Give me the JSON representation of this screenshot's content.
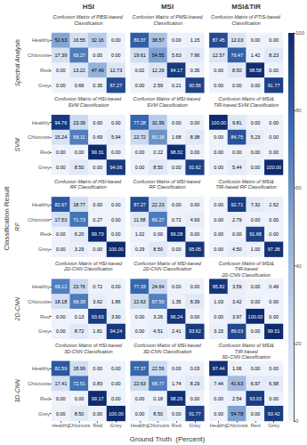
{
  "chart_data": {
    "type": "heatmap",
    "col_titles": [
      "HSI",
      "MSI",
      "MSI&TIR"
    ],
    "row_titles": [
      "Spectral Analysis",
      "SVM",
      "RF",
      "2D-CNN",
      "3D-CNN"
    ],
    "subtitles": [
      [
        "Confusion Matrix of PBSI-based Classification",
        "Confusion Matrix of PMSI-based Classification",
        "Confusion Matrix of PTIS-based Classification"
      ],
      [
        "Confusion Matrix of HSI-based SVM Classification",
        "Confusion Matrix of MSI-based SVM Classification",
        "Confusion Matrix of MSI&TIR-based SVM Classification"
      ],
      [
        "Confusion Matrix of HSI-based RF Classification",
        "Confusion Matrix of MSI-based RF Classification",
        "Confusion Matrix of MSI&TIR-based RF Classification"
      ],
      [
        "Confusion Matrix of HSI-based\n2D-CNN Classification",
        "Confusion Matrix of MSI-based\n2D-CNN Classification",
        "Confusion Matrix of MSI&TIR-based\n2D-CNN Classification"
      ],
      [
        "Confusion Matrix of HSI-based\n3D-CNN Classification",
        "Confusion Matrix of MSI-based\n3D-CNN Classification",
        "Confusion Matrix of MSI&TIR-based\n3D-CNN Classification"
      ]
    ],
    "categories": [
      "Healthy",
      "Chlorosis",
      "Red",
      "Grey"
    ],
    "xlabel": "Ground Truth  (Percent)",
    "ylabel": "Classification Result",
    "values": [
      [
        [
          [
            52.63,
            16.55,
            32.16,
            0.0
          ],
          [
            17.39,
            69.27,
            0.0,
            0.0
          ],
          [
            0.0,
            13.22,
            47.49,
            12.73
          ],
          [
            0.0,
            0.66,
            0.35,
            87.27
          ]
        ],
        [
          [
            80.37,
            38.57,
            0.0,
            1.15
          ],
          [
            19.61,
            54.55,
            5.63,
            7.96
          ],
          [
            0.02,
            12.29,
            94.17,
            0.35
          ],
          [
            0.0,
            2.59,
            0.21,
            90.56
          ]
        ],
        [
          [
            87.45,
            12.03,
            0.0,
            0.0
          ],
          [
            12.57,
            79.47,
            1.42,
            8.23
          ],
          [
            0.0,
            8.5,
            98.58,
            0.0
          ],
          [
            0.0,
            0.0,
            0.0,
            91.77
          ]
        ]
      ],
      [
        [
          [
            94.76,
            23.39,
            0.0,
            0.0
          ],
          [
            15.24,
            68.11,
            0.69,
            5.94
          ],
          [
            0.0,
            0.0,
            99.31,
            0.0
          ],
          [
            0.0,
            8.5,
            0.0,
            94.06
          ]
        ],
        [
          [
            77.28,
            31.99,
            0.0,
            0.0
          ],
          [
            22.72,
            60.18,
            1.68,
            8.38
          ],
          [
            0.0,
            0.22,
            98.32,
            0.0
          ],
          [
            0.0,
            8.5,
            0.0,
            91.62
          ]
        ],
        [
          [
            100.0,
            9.81,
            0.0,
            0.0
          ],
          [
            0.0,
            84.75,
            5.23,
            0.0
          ],
          [
            0.0,
            0.0,
            0.0,
            0.0
          ],
          [
            0.0,
            5.44,
            0.0,
            100.0
          ]
        ]
      ],
      [
        [
          [
            82.67,
            18.77,
            0.0,
            0.0
          ],
          [
            17.53,
            71.73,
            0.27,
            0.0
          ],
          [
            0.0,
            6.2,
            99.73,
            0.0
          ],
          [
            0.0,
            3.29,
            0.0,
            100.0
          ]
        ],
        [
          [
            87.27,
            22.23,
            0.0,
            0.0
          ],
          [
            11.58,
            69.27,
            0.72,
            4.93
          ],
          [
            1.02,
            0.0,
            99.28,
            0.0
          ],
          [
            0.29,
            8.5,
            0.0,
            95.05
          ]
        ],
        [
          [
            0.0,
            92.71,
            7.32,
            2.62
          ],
          [
            0.0,
            2.79,
            0.0,
            0.0
          ],
          [
            0.0,
            0.0,
            91.68,
            0.0
          ],
          [
            0.0,
            4.5,
            1.0,
            97.38
          ]
        ]
      ],
      [
        [
          [
            68.12,
            23.76,
            0.72,
            0.0
          ],
          [
            18.18,
            69.39,
            3.62,
            1.86
          ],
          [
            0.0,
            0.13,
            93.63,
            3.9
          ],
          [
            0.0,
            8.72,
            1.81,
            94.24
          ]
        ],
        [
          [
            77.33,
            24.64,
            0.0,
            0.0
          ],
          [
            22.63,
            67.59,
            1.35,
            8.39
          ],
          [
            0.0,
            3.26,
            96.24,
            0.0
          ],
          [
            0.0,
            4.51,
            2.41,
            93.62
          ]
        ],
        [
          [
            95.82,
            3.59,
            0.0,
            0.49
          ],
          [
            1.03,
            3.42,
            0.0,
            0.0
          ],
          [
            0.0,
            3.97,
            100.0,
            0.0
          ],
          [
            3.15,
            89.03,
            0.0,
            99.51
          ]
        ]
      ],
      [
        [
          [
            82.59,
            18.99,
            0.0,
            0.0
          ],
          [
            17.41,
            72.51,
            0.83,
            0.0
          ],
          [
            0.0,
            0.0,
            99.17,
            0.0
          ],
          [
            0.0,
            8.5,
            0.0,
            100.0
          ]
        ],
        [
          [
            77.37,
            22.56,
            0.0,
            0.03
          ],
          [
            22.63,
            68.77,
            1.74,
            8.29
          ],
          [
            0.0,
            0.18,
            98.26,
            0.0
          ],
          [
            0.0,
            8.5,
            0.0,
            91.77
          ]
        ],
        [
          [
            97.44,
            1.06,
            0.0,
            0.0
          ],
          [
            7.44,
            41.63,
            6.97,
            6.58
          ],
          [
            0.0,
            2.54,
            93.03,
            0.0
          ],
          [
            0.0,
            54.78,
            0.0,
            93.42
          ]
        ]
      ]
    ],
    "value_labels": [
      [
        [
          [
            "52.63",
            "16.55",
            "32.16",
            "0.00"
          ],
          [
            "17.39",
            "69.27",
            "0.00",
            "0.00"
          ],
          [
            "0.00",
            "13.22",
            "47.49",
            "12.73"
          ],
          [
            "0.00",
            "0.66",
            "0.35",
            "87.27"
          ]
        ],
        [
          [
            "80.37",
            "38.57",
            "0.00",
            "1.15"
          ],
          [
            "19.61",
            "54.55",
            "5.63",
            "7.96"
          ],
          [
            "0.02",
            "12.29",
            "94.17",
            "0.35"
          ],
          [
            "0.00",
            "2.59",
            "0.21",
            "90.56"
          ]
        ],
        [
          [
            "87.45",
            "12.03",
            "0.00",
            "0.00"
          ],
          [
            "12.57",
            "79.47",
            "1.42",
            "8.23"
          ],
          [
            "0.00",
            "8.50",
            "98.58",
            "0.00"
          ],
          [
            "0.00",
            "0.00",
            "0.00",
            "91.77"
          ]
        ]
      ],
      [
        [
          [
            "94.76",
            "23.39",
            "0.00",
            "0.00"
          ],
          [
            "15.24",
            "68.11",
            "0.69",
            "5.94"
          ],
          [
            "0.00",
            "0.00",
            "99.31",
            "0.00"
          ],
          [
            "0.00",
            "8.50",
            "0.00",
            "94.06"
          ]
        ],
        [
          [
            "77.28",
            "31.99",
            "0.00",
            "0.00"
          ],
          [
            "22.72",
            "60.18",
            "1.68",
            "8.38"
          ],
          [
            "0.00",
            "0.22",
            "98.32",
            "0.00"
          ],
          [
            "0.00",
            "8.50",
            "0.00",
            "91.62"
          ]
        ],
        [
          [
            "100.00",
            "9.81",
            "0.00",
            "0.00"
          ],
          [
            "0.00",
            "84.75",
            "5.23",
            "0.00"
          ],
          [
            "0.00",
            "0.00",
            "0.00",
            "0.00"
          ],
          [
            "0.00",
            "5.44",
            "0.00",
            "100.00"
          ]
        ]
      ],
      [
        [
          [
            "82.67",
            "18.77",
            "0.00",
            "0.00"
          ],
          [
            "17.53",
            "71.73",
            "0.27",
            "0.00"
          ],
          [
            "0.00",
            "6.20",
            "99.73",
            "0.00"
          ],
          [
            "0.00",
            "3.29",
            "0.00",
            "100.00"
          ]
        ],
        [
          [
            "87.27",
            "22.23",
            "0.00",
            "0.00"
          ],
          [
            "11.58",
            "69.27",
            "0.72",
            "4.93"
          ],
          [
            "1.02",
            "0.00",
            "99.28",
            "0.00"
          ],
          [
            "0.29",
            "8.50",
            "0.00",
            "95.05"
          ]
        ],
        [
          [
            "0.00",
            "92.71",
            "7.32",
            "2.62"
          ],
          [
            "0.00",
            "2.79",
            "0.00",
            "0.00"
          ],
          [
            "0.00",
            "0.00",
            "91.68",
            "0.00"
          ],
          [
            "0.00",
            "4.50",
            "1.00",
            "97.38"
          ]
        ]
      ],
      [
        [
          [
            "68.12",
            "23.76",
            "0.72",
            "0.00"
          ],
          [
            "18.18",
            "69.39",
            "3.62",
            "1.86"
          ],
          [
            "0.00",
            "0.13",
            "93.63",
            "3.90"
          ],
          [
            "0.00",
            "8.72",
            "1.81",
            "94.24"
          ]
        ],
        [
          [
            "77.33",
            "24.64",
            "0.00",
            "0.00"
          ],
          [
            "22.63",
            "67.59",
            "1.35",
            "8.39"
          ],
          [
            "0.00",
            "3.26",
            "96.24",
            "0.00"
          ],
          [
            "0.00",
            "4.51",
            "2.41",
            "93.62"
          ]
        ],
        [
          [
            "95.82",
            "3.59",
            "0.00",
            "0.49"
          ],
          [
            "1.03",
            "3.42",
            "0.00",
            "0.00"
          ],
          [
            "0.00",
            "3.97",
            "100.00",
            "0.00"
          ],
          [
            "3.15",
            "89.03",
            "0.00",
            "99.51"
          ]
        ]
      ],
      [
        [
          [
            "82.59",
            "18.99",
            "0.00",
            "0.00"
          ],
          [
            "17.41",
            "72.51",
            "0.83",
            "0.00"
          ],
          [
            "0.00",
            "0.00",
            "99.17",
            "0.00"
          ],
          [
            "0.00",
            "8.50",
            "0.00",
            "100.00"
          ]
        ],
        [
          [
            "77.37",
            "22.56",
            "0.00",
            "0.03"
          ],
          [
            "22.63",
            "68.77",
            "1.74",
            "8.29"
          ],
          [
            "0.00",
            "0.18",
            "98.26",
            "0.00"
          ],
          [
            "0.00",
            "8.50",
            "0.00",
            "91.77"
          ]
        ],
        [
          [
            "97.44",
            "1.06",
            "0.00",
            "0.00"
          ],
          [
            "7.44",
            "41.63",
            "6.97",
            "6.58"
          ],
          [
            "0.00",
            "2.54",
            "93.03",
            "0.00"
          ],
          [
            "0.00",
            "54.78",
            "0.00",
            "93.42"
          ]
        ]
      ]
    ],
    "data_labels": true,
    "color": [
      "#eef2fb",
      "#c8d8ef",
      "#8eadd8",
      "#3a6cb4",
      "#0d2a6e"
    ],
    "colorbar": {
      "range": [
        0,
        100
      ],
      "ticks": [
        0,
        20,
        40,
        60,
        80,
        100
      ]
    }
  }
}
